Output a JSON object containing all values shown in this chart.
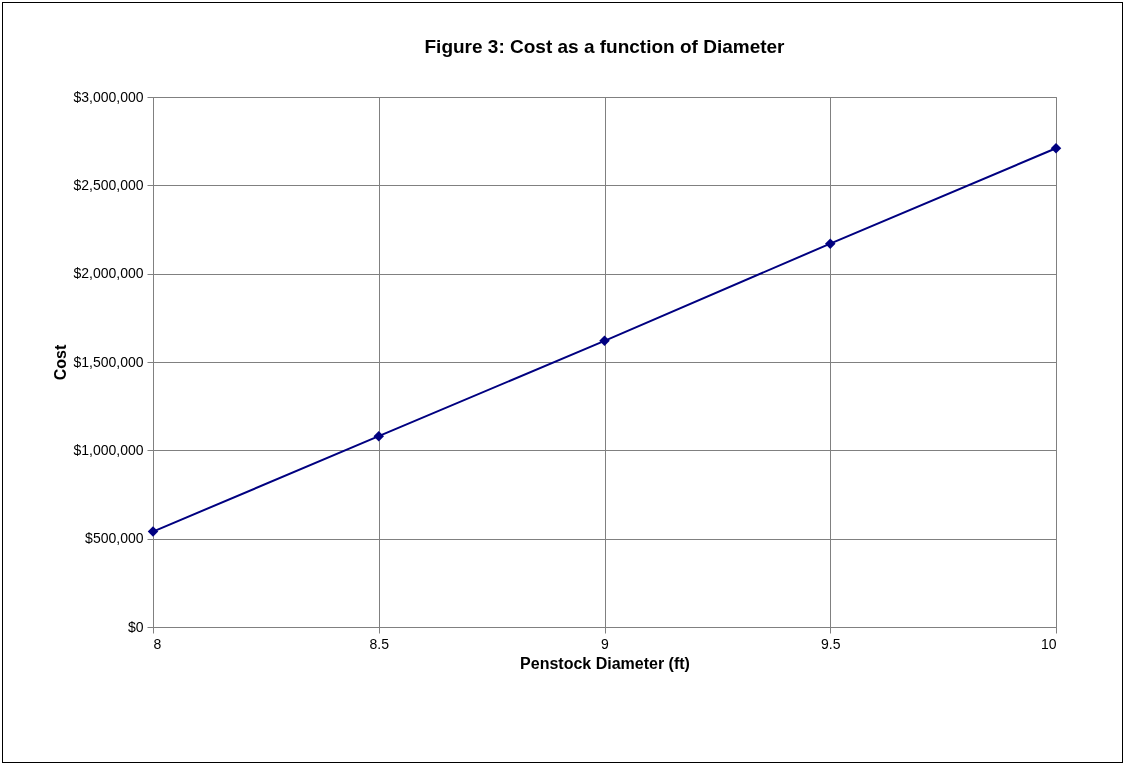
{
  "chart_data": {
    "type": "line",
    "title": "Figure 3: Cost as a function of Diameter",
    "xlabel": "Penstock Diameter (ft)",
    "ylabel": "Cost",
    "x": [
      8,
      8.5,
      9,
      9.5,
      10
    ],
    "series": [
      {
        "color": "#000080",
        "values": [
          540000,
          1080000,
          1620000,
          2170000,
          2710000
        ]
      }
    ],
    "xlim": [
      8,
      10
    ],
    "xticks": [
      8,
      8.5,
      9,
      9.5,
      10
    ],
    "ylim": [
      0,
      3000000
    ],
    "yticks": [
      {
        "value": 0,
        "label": "$0"
      },
      {
        "value": 500000,
        "label": "$500,000"
      },
      {
        "value": 1000000,
        "label": "$1,000,000"
      },
      {
        "value": 1500000,
        "label": "$1,500,000"
      },
      {
        "value": 2000000,
        "label": "$2,000,000"
      },
      {
        "value": 2500000,
        "label": "$2,500,000"
      },
      {
        "value": 3000000,
        "label": "$3,000,000"
      }
    ],
    "grid": true,
    "marker": "diamond",
    "line_style": "solid"
  }
}
